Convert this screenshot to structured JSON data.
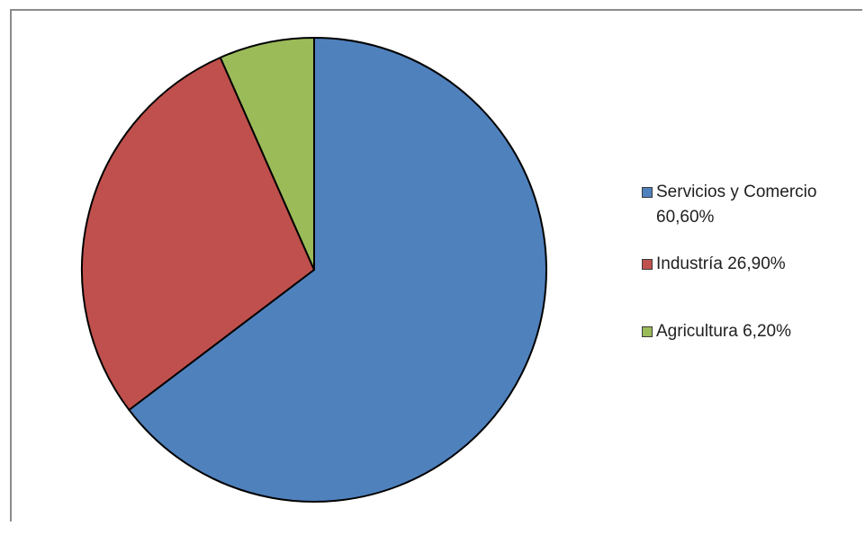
{
  "chart_data": {
    "type": "pie",
    "title": "",
    "start_angle_deg": 0,
    "direction": "clockwise",
    "slices": [
      {
        "label": "Servicios y Comercio 60,60%",
        "value": 60.6,
        "color": "#4f81bd"
      },
      {
        "label": "Industría 26,90%",
        "value": 26.9,
        "color": "#c0504d"
      },
      {
        "label": "Agricultura 6,20%",
        "value": 6.2,
        "color": "#9bbb59"
      }
    ],
    "legend_position": "right"
  }
}
